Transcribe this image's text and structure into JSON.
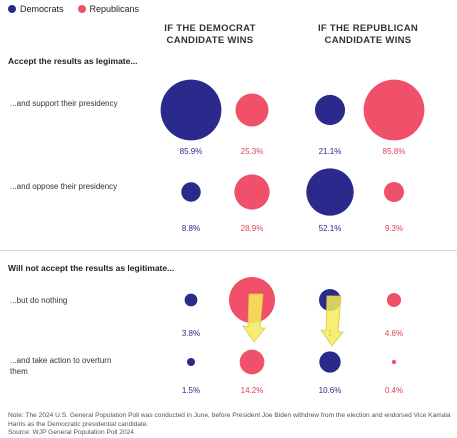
{
  "legend": [
    {
      "label": "Democrats",
      "color": "#2a2a8c"
    },
    {
      "label": "Republicans",
      "color": "#f0506a"
    }
  ],
  "columns": {
    "dem_win": "IF THE DEMOCRAT CANDIDATE WINS",
    "rep_win": "IF THE REPUBLICAN CANDIDATE WINS"
  },
  "sections": {
    "accept": "Accept the results as legimate...",
    "not_accept": "Will not accept the results as legitimate..."
  },
  "rows": [
    {
      "label": "...and support their presidency"
    },
    {
      "label": "...and oppose their presidency"
    },
    {
      "label": "...but do nothing"
    },
    {
      "label": "...and take action to overturn them"
    }
  ],
  "note": "Note: The 2024 U.S. General Population Poll was conducted in June, before President Joe Biden withdrew from the election and endorsed Vice Kamala Harris as the Democratic presidential candidate.",
  "source": "Source: WJP General Population Poll 2024",
  "chart_data": {
    "type": "scatter",
    "categories": [
      "...and support their presidency",
      "...and oppose their presidency",
      "...but do nothing",
      "...and take action to overturn them"
    ],
    "series": [
      {
        "name": "Democrats",
        "column": "IF THE DEMOCRAT CANDIDATE WINS",
        "color": "#2a2a8c",
        "values": [
          85.9,
          8.8,
          3.8,
          1.5
        ],
        "labels": [
          "85.9%",
          "8.8%",
          "3.8%",
          "1.5%"
        ]
      },
      {
        "name": "Republicans",
        "column": "IF THE DEMOCRAT CANDIDATE WINS",
        "color": "#f0506a",
        "values": [
          25.3,
          28.9,
          null,
          14.2
        ],
        "labels": [
          "25.3%",
          "28.9%",
          "",
          "14.2%"
        ]
      },
      {
        "name": "Democrats",
        "column": "IF THE REPUBLICAN CANDIDATE WINS",
        "color": "#2a2a8c",
        "values": [
          21.1,
          52.1,
          null,
          10.6
        ],
        "labels": [
          "21.1%",
          "52.1%",
          "1",
          "10.6%"
        ]
      },
      {
        "name": "Republicans",
        "column": "IF THE REPUBLICAN CANDIDATE WINS",
        "color": "#f0506a",
        "values": [
          85.8,
          9.3,
          4.6,
          0.4
        ],
        "labels": [
          "85.8%",
          "9.3%",
          "4.6%",
          "0.4%"
        ]
      }
    ],
    "annotations": [
      "yellow arrow overlay pointing down at Republicans / but do nothing (Democrat wins)",
      "yellow arrow overlay pointing down at Democrats / but do nothing (Republican wins)"
    ],
    "legend_position": "top-left",
    "grid": false
  }
}
